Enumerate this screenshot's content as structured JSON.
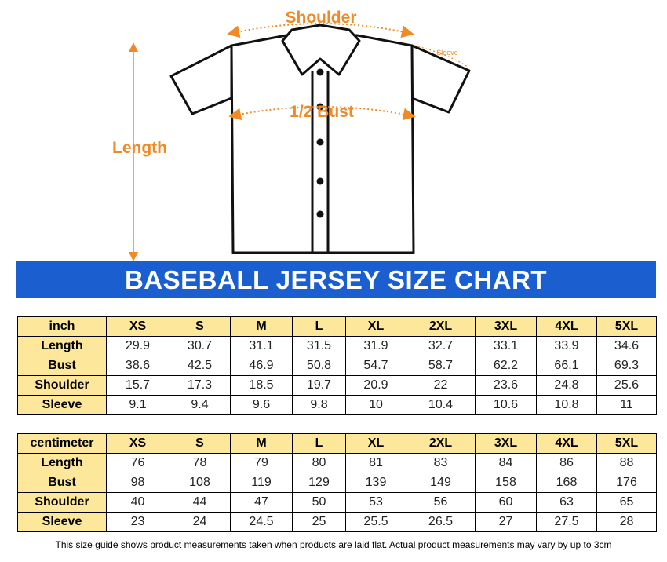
{
  "diagram": {
    "shoulder": "Shoulder",
    "sleeve": "Sleeve",
    "bust": "1/2 Bust",
    "length": "Length"
  },
  "title": "BASEBALL JERSEY SIZE CHART",
  "tables": [
    {
      "header": [
        "inch",
        "XS",
        "S",
        "M",
        "L",
        "XL",
        "2XL",
        "3XL",
        "4XL",
        "5XL"
      ],
      "rows": [
        [
          "Length",
          29.9,
          30.7,
          31.1,
          31.5,
          31.9,
          32.7,
          33.1,
          33.9,
          34.6
        ],
        [
          "Bust",
          38.6,
          42.5,
          46.9,
          50.8,
          54.7,
          58.7,
          62.2,
          66.1,
          69.3
        ],
        [
          "Shoulder",
          15.7,
          17.3,
          18.5,
          19.7,
          20.9,
          22,
          23.6,
          24.8,
          25.6
        ],
        [
          "Sleeve",
          9.1,
          9.4,
          9.6,
          9.8,
          10,
          10.4,
          10.6,
          10.8,
          11
        ]
      ]
    },
    {
      "header": [
        "centimeter",
        "XS",
        "S",
        "M",
        "L",
        "XL",
        "2XL",
        "3XL",
        "4XL",
        "5XL"
      ],
      "rows": [
        [
          "Length",
          76,
          78,
          79,
          80,
          81,
          83,
          84,
          86,
          88
        ],
        [
          "Bust",
          98,
          108,
          119,
          129,
          139,
          149,
          158,
          168,
          176
        ],
        [
          "Shoulder",
          40,
          44,
          47,
          50,
          53,
          56,
          60,
          63,
          65
        ],
        [
          "Sleeve",
          23,
          24,
          24.5,
          25,
          25.5,
          26.5,
          27,
          27.5,
          28
        ]
      ]
    }
  ],
  "note": "This size guide shows product measurements taken when products are laid flat. Actual product measurements may vary by up to 3cm"
}
